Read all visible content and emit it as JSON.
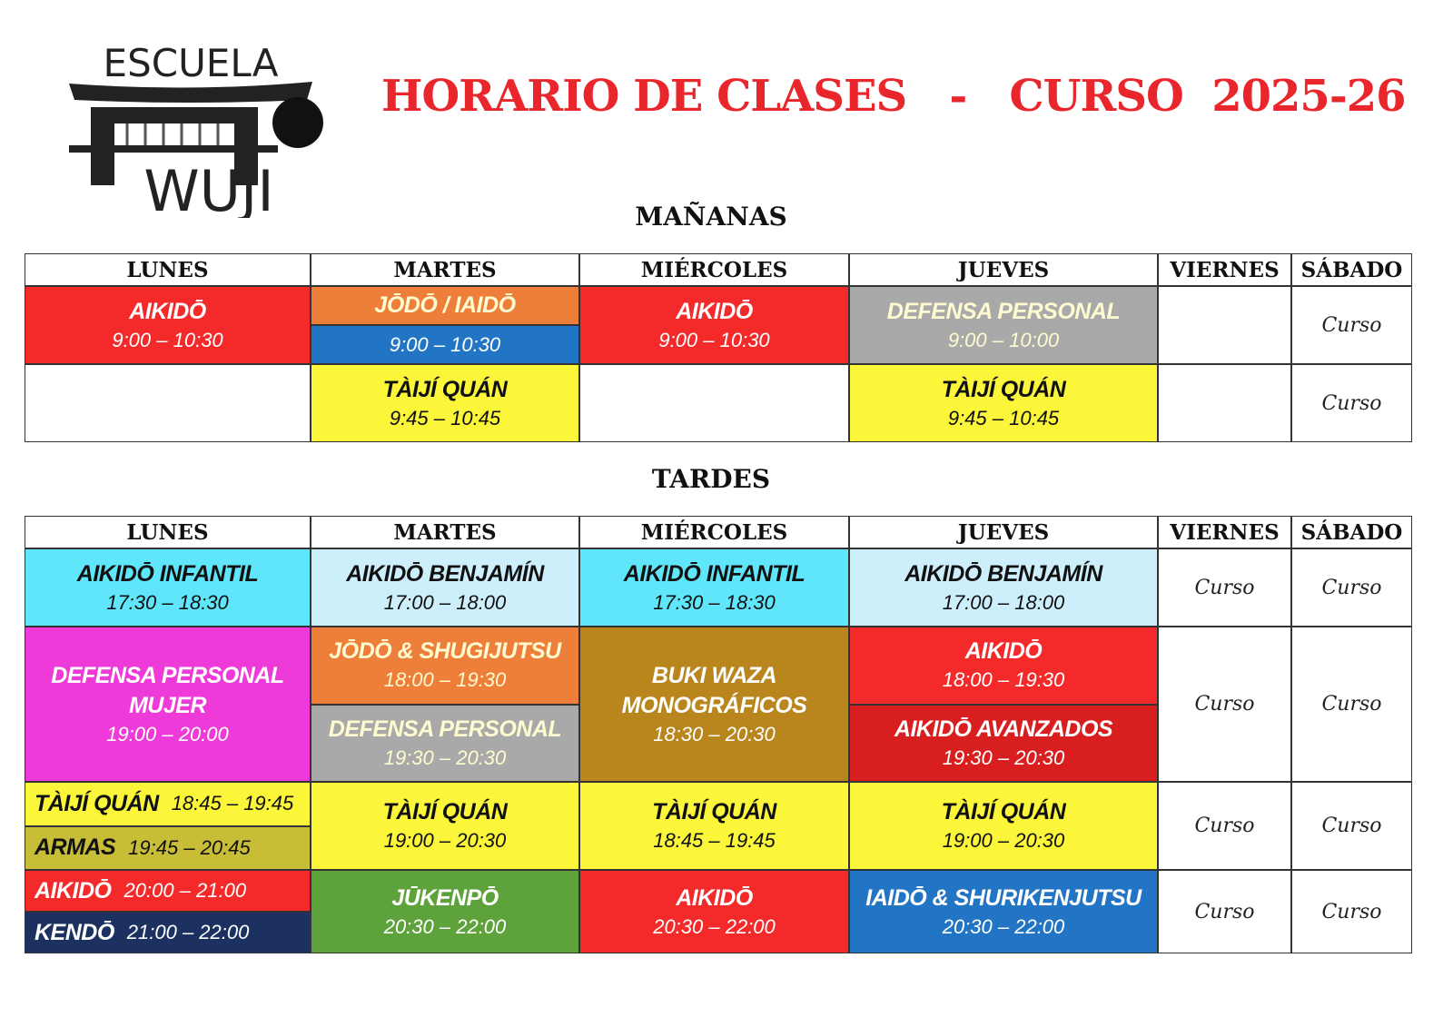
{
  "logo": {
    "top": "ESCUELA",
    "bottom": "WUJI"
  },
  "title": "HORARIO DE CLASES   -   CURSO  2025-26",
  "sections": [
    {
      "heading": "MAÑANAS",
      "days": [
        "LUNES",
        "MARTES",
        "MIÉRCOLES",
        "JUEVES",
        "VIERNES",
        "SÁBADO"
      ],
      "rows": [
        [
          [
            {
              "color": "#f42a2a",
              "lines": [
                "AIKIDŌ",
                "9:00 – 10:30"
              ]
            }
          ],
          [
            {
              "color": "#ee7f3a",
              "lines": [
                "JŌDŌ / IAIDŌ"
              ]
            },
            {
              "color": "#2275c4",
              "lines": [
                "9:00 – 10:30"
              ]
            }
          ],
          [
            {
              "color": "#f42a2a",
              "lines": [
                "AIKIDŌ",
                "9:00 – 10:30"
              ]
            }
          ],
          [
            {
              "color": "#a9a9a9",
              "lines": [
                "DEFENSA PERSONAL",
                "9:00 – 10:00"
              ]
            }
          ],
          [],
          [
            {
              "color": "#ffffff",
              "lines": [
                "Curso"
              ]
            }
          ]
        ],
        [
          [],
          [
            {
              "color": "#fbf63a",
              "lines": [
                "TÀIJÍ QUÁN",
                "9:45 – 10:45"
              ]
            }
          ],
          [],
          [
            {
              "color": "#fbf63a",
              "lines": [
                "TÀIJÍ QUÁN",
                "9:45 – 10:45"
              ]
            }
          ],
          [],
          [
            {
              "color": "#ffffff",
              "lines": [
                "Curso"
              ]
            }
          ]
        ]
      ]
    },
    {
      "heading": "TARDES",
      "days": [
        "LUNES",
        "MARTES",
        "MIÉRCOLES",
        "JUEVES",
        "VIERNES",
        "SÁBADO"
      ],
      "rows": [
        [
          [
            {
              "color": "#5fe6fa",
              "lines": [
                "AIKIDŌ INFANTIL",
                "17:30 – 18:30"
              ]
            }
          ],
          [
            {
              "color": "#cdeffb",
              "lines": [
                "AIKIDŌ BENJAMÍN",
                "17:00 – 18:00"
              ]
            }
          ],
          [
            {
              "color": "#5fe6fa",
              "lines": [
                "AIKIDŌ INFANTIL",
                "17:30 – 18:30"
              ]
            }
          ],
          [
            {
              "color": "#cdeffb",
              "lines": [
                "AIKIDŌ BENJAMÍN",
                "17:00 – 18:00"
              ]
            }
          ],
          [
            {
              "color": "#ffffff",
              "lines": [
                "Curso"
              ]
            }
          ],
          [
            {
              "color": "#ffffff",
              "lines": [
                "Curso"
              ]
            }
          ]
        ],
        [
          [
            {
              "color": "#ee3ad8",
              "lines": [
                "DEFENSA PERSONAL",
                "MUJER",
                "19:00 – 20:00"
              ]
            }
          ],
          [
            {
              "color": "#ee7f3a",
              "lines": [
                "JŌDŌ & SHUGIJUTSU",
                "18:00 – 19:30"
              ]
            },
            {
              "color": "#a9a9a9",
              "lines": [
                "DEFENSA PERSONAL",
                "19:30 – 20:30"
              ]
            }
          ],
          [
            {
              "color": "#b8861c",
              "lines": [
                "BUKI WAZA",
                "MONOGRÁFICOS",
                "18:30 – 20:30"
              ]
            }
          ],
          [
            {
              "color": "#f42a2a",
              "lines": [
                "AIKIDŌ",
                "18:00 – 19:30"
              ]
            },
            {
              "color": "#d91e20",
              "lines": [
                "AIKIDŌ AVANZADOS",
                "19:30 – 20:30"
              ]
            }
          ],
          [
            {
              "color": "#ffffff",
              "lines": [
                "Curso"
              ]
            }
          ],
          [
            {
              "color": "#ffffff",
              "lines": [
                "Curso"
              ]
            }
          ]
        ],
        [
          [
            {
              "color": "#fbf63a",
              "lines": [
                "TÀIJÍ QUÁN",
                "18:45 – 19:45"
              ]
            },
            {
              "color": "#c8bd36",
              "lines": [
                "ARMAS",
                "19:45 – 20:45"
              ]
            }
          ],
          [
            {
              "color": "#fbf63a",
              "lines": [
                "TÀIJÍ QUÁN",
                "19:00 – 20:30"
              ]
            }
          ],
          [
            {
              "color": "#fbf63a",
              "lines": [
                "TÀIJÍ QUÁN",
                "18:45 – 19:45"
              ]
            }
          ],
          [
            {
              "color": "#fbf63a",
              "lines": [
                "TÀIJÍ QUÁN",
                "19:00 – 20:30"
              ]
            }
          ],
          [
            {
              "color": "#ffffff",
              "lines": [
                "Curso"
              ]
            }
          ],
          [
            {
              "color": "#ffffff",
              "lines": [
                "Curso"
              ]
            }
          ]
        ],
        [
          [
            {
              "color": "#f42a2a",
              "lines": [
                "AIKIDŌ",
                "20:00 – 21:00"
              ]
            },
            {
              "color": "#1c3160",
              "lines": [
                "KENDŌ",
                "21:00 – 22:00"
              ]
            }
          ],
          [
            {
              "color": "#5ea23c",
              "lines": [
                "JŪKENPŌ",
                "20:30 – 22:00"
              ]
            }
          ],
          [
            {
              "color": "#f42a2a",
              "lines": [
                "AIKIDŌ",
                "20:30 – 22:00"
              ]
            }
          ],
          [
            {
              "color": "#2275c4",
              "lines": [
                "IAIDŌ & SHURIKENJUTSU",
                "20:30 – 22:00"
              ]
            }
          ],
          [
            {
              "color": "#ffffff",
              "lines": [
                "Curso"
              ]
            }
          ],
          [
            {
              "color": "#ffffff",
              "lines": [
                "Curso"
              ]
            }
          ]
        ]
      ]
    }
  ]
}
